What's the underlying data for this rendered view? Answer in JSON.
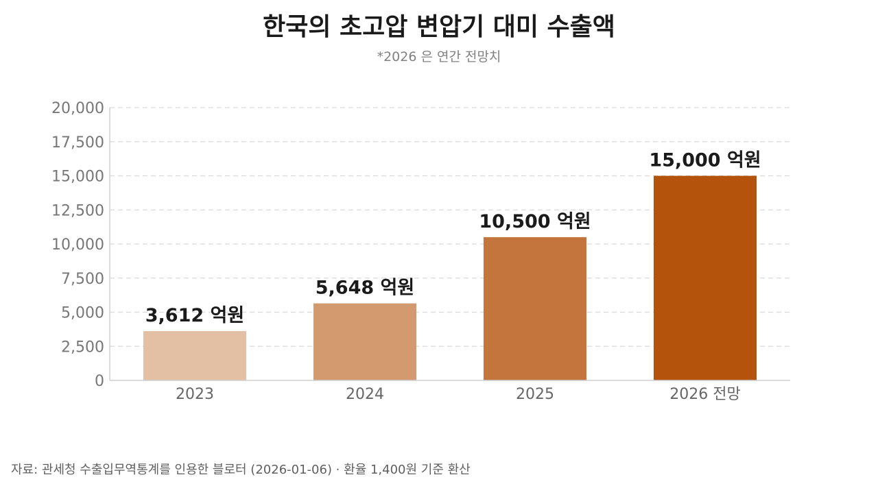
{
  "chart_data": {
    "type": "bar",
    "title": "한국의 초고압 변압기 대미 수출액",
    "subtitle": "*2026 은 연간 전망치",
    "categories": [
      "2023",
      "2024",
      "2025",
      "2026 전망"
    ],
    "values": [
      3612,
      5648,
      10500,
      15000
    ],
    "data_labels": [
      "3,612 억원",
      "5,648 억원",
      "10,500 억원",
      "15,000 억원"
    ],
    "bar_colors": [
      "#e3bfa3",
      "#d29a6e",
      "#c4753e",
      "#b4540c"
    ],
    "ylim": [
      0,
      20000
    ],
    "yticks": [
      0,
      2500,
      5000,
      7500,
      10000,
      12500,
      15000,
      17500,
      20000
    ],
    "ytick_labels": [
      "0",
      "2,500",
      "5,000",
      "7,500",
      "10,000",
      "12,500",
      "15,000",
      "17,500",
      "20,000"
    ],
    "grid": true,
    "xlabel": "",
    "ylabel": "",
    "source": "자료: 관세청 수출입무역통계를 인용한 블로터 (2026-01-06) · 환율 1,400원 기준 환산"
  }
}
